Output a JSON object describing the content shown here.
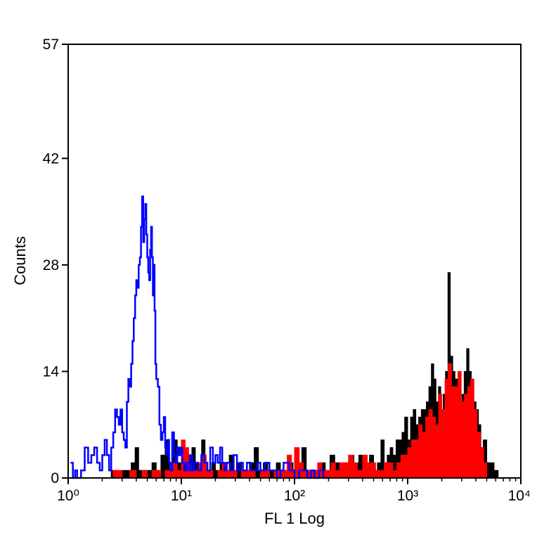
{
  "chart_data": {
    "type": "area",
    "title": "",
    "xlabel": "FL 1 Log",
    "ylabel": "Counts",
    "x_scale": "log",
    "xlim": [
      1,
      10000
    ],
    "ylim": [
      0,
      57
    ],
    "x_ticks": [
      {
        "value": 1,
        "label": "10⁰"
      },
      {
        "value": 10,
        "label": "10¹"
      },
      {
        "value": 100,
        "label": "10²"
      },
      {
        "value": 1000,
        "label": "10³"
      },
      {
        "value": 10000,
        "label": "10⁴"
      }
    ],
    "y_ticks": [
      {
        "value": 0,
        "label": "0"
      },
      {
        "value": 14,
        "label": "14"
      },
      {
        "value": 28,
        "label": "28"
      },
      {
        "value": 42,
        "label": "42"
      },
      {
        "value": 57,
        "label": "57"
      }
    ],
    "grid": false,
    "legend": "none",
    "series": [
      {
        "kind": "filled",
        "fill_color": "#000000",
        "x": [
          1.3,
          1.6,
          2.0,
          2.4,
          2.7,
          3.0,
          3.3,
          3.6,
          3.9,
          4.2,
          4.6,
          5.0,
          5.5,
          6.0,
          6.6,
          7.2,
          7.8,
          8.5,
          9.2,
          10.0,
          10.7,
          11.5,
          12.4,
          13.3,
          14.2,
          15.1,
          16.2,
          17.4,
          18.6,
          20.0,
          22.0,
          24.0,
          26.5,
          29.0,
          31.5,
          34.0,
          37.0,
          40.0,
          44.0,
          48.0,
          53.0,
          58.0,
          63.0,
          69.0,
          75.0,
          82.0,
          89.0,
          97.0,
          106.0,
          116.0,
          127.0,
          140.0,
          154.0,
          170.0,
          187.0,
          206.0,
          227.0,
          250.0,
          275.0,
          303.0,
          335.0,
          370.0,
          400.0,
          430.0,
          460.0,
          500.0,
          540.0,
          580.0,
          620.0,
          660.0,
          700.0,
          740.0,
          790.0,
          840.0,
          890.0,
          940.0,
          1000.0,
          1060.0,
          1120.0,
          1180.0,
          1250.0,
          1320.0,
          1390.0,
          1460.0,
          1540.0,
          1620.0,
          1700.0,
          1780.0,
          1870.0,
          1960.0,
          2060.0,
          2160.0,
          2270.0,
          2380.0,
          2500.0,
          2620.0,
          2750.0,
          2880.0,
          3020.0,
          3160.0,
          3320.0,
          3480.0,
          3650.0,
          3830.0,
          4020.0,
          4220.0,
          4430.0,
          4650.0,
          5000.0,
          5400.0,
          5800.0,
          6300.0
        ],
        "y": [
          0,
          0,
          0,
          1,
          0,
          1,
          1,
          2,
          4,
          1,
          1,
          1,
          2,
          1,
          3,
          5,
          1,
          5,
          2,
          2,
          1,
          3,
          4,
          2,
          1,
          5,
          1,
          1,
          2,
          1,
          2,
          1,
          3,
          1,
          2,
          1,
          1,
          2,
          4,
          1,
          2,
          1,
          1,
          2,
          1,
          1,
          2,
          1,
          2,
          4,
          1,
          1,
          1,
          2,
          1,
          3,
          2,
          1,
          2,
          3,
          2,
          3,
          2,
          1,
          3,
          1,
          2,
          5,
          2,
          3,
          4,
          3,
          5,
          5,
          6,
          8,
          5,
          8,
          9,
          7,
          8,
          9,
          9,
          10,
          12,
          15,
          13,
          10,
          12,
          9,
          11,
          14,
          27,
          16,
          14,
          13,
          12,
          10,
          11,
          14,
          17,
          14,
          11,
          10,
          9,
          7,
          4,
          5,
          2,
          2,
          1,
          0
        ]
      },
      {
        "kind": "filled",
        "fill_color": "#ff0000",
        "x": [
          2.0,
          2.5,
          3.0,
          3.5,
          4.0,
          4.5,
          5.0,
          5.5,
          6.0,
          6.6,
          7.2,
          7.8,
          8.5,
          9.2,
          10.0,
          10.8,
          11.6,
          12.5,
          13.4,
          14.4,
          15.5,
          16.6,
          17.8,
          19.0,
          21.0,
          23.0,
          25.5,
          28.0,
          31.0,
          34.0,
          37.0,
          41.0,
          45.0,
          50.0,
          55.0,
          60.0,
          66.0,
          72.0,
          79.0,
          86.0,
          94.0,
          100.0,
          110.0,
          120.0,
          130.0,
          145.0,
          160.0,
          175.0,
          190.0,
          210.0,
          230.0,
          250.0,
          275.0,
          300.0,
          330.0,
          360.0,
          400.0,
          440.0,
          480.0,
          520.0,
          570.0,
          620.0,
          680.0,
          740.0,
          800.0,
          870.0,
          940.0,
          1000.0,
          1080.0,
          1160.0,
          1250.0,
          1340.0,
          1440.0,
          1540.0,
          1650.0,
          1760.0,
          1880.0,
          2000.0,
          2140.0,
          2280.0,
          2440.0,
          2600.0,
          2780.0,
          2970.0,
          3170.0,
          3380.0,
          3600.0,
          3850.0,
          4100.0,
          4400.0,
          4700.0,
          5000.0
        ],
        "y": [
          0,
          1,
          0,
          1,
          0,
          1,
          0,
          1,
          1,
          0,
          1,
          1,
          2,
          1,
          5,
          4,
          2,
          1,
          1,
          2,
          3,
          1,
          1,
          0,
          1,
          2,
          1,
          1,
          0,
          1,
          1,
          1,
          0,
          1,
          1,
          0,
          1,
          1,
          1,
          3,
          1,
          4,
          2,
          1,
          1,
          1,
          2,
          1,
          1,
          2,
          1,
          2,
          2,
          3,
          2,
          1,
          3,
          2,
          2,
          1,
          1,
          2,
          2,
          1,
          2,
          3,
          3,
          4,
          5,
          5,
          7,
          6,
          8,
          9,
          8,
          7,
          11,
          9,
          13,
          15,
          12,
          12,
          14,
          10,
          11,
          12,
          13,
          9,
          6,
          4,
          2,
          0
        ]
      },
      {
        "kind": "line",
        "stroke_color": "#0000ff",
        "x": [
          1.05,
          1.1,
          1.15,
          1.2,
          1.3,
          1.4,
          1.5,
          1.6,
          1.7,
          1.8,
          1.9,
          2.0,
          2.1,
          2.2,
          2.3,
          2.4,
          2.5,
          2.6,
          2.7,
          2.8,
          2.9,
          3.0,
          3.1,
          3.2,
          3.3,
          3.4,
          3.5,
          3.6,
          3.7,
          3.8,
          3.9,
          4.0,
          4.1,
          4.2,
          4.3,
          4.4,
          4.5,
          4.6,
          4.7,
          4.8,
          4.9,
          5.0,
          5.1,
          5.2,
          5.3,
          5.4,
          5.5,
          5.6,
          5.7,
          5.8,
          5.9,
          6.0,
          6.2,
          6.4,
          6.6,
          6.8,
          7.0,
          7.2,
          7.4,
          7.6,
          7.8,
          8.0,
          8.3,
          8.6,
          8.9,
          9.2,
          9.5,
          9.8,
          10.2,
          10.6,
          11.0,
          11.5,
          12.0,
          12.5,
          13.0,
          14.0,
          15.0,
          16.0,
          17.0,
          18.0,
          19.0,
          20.0,
          21.0,
          22.0,
          23.0,
          24.0,
          25.0,
          27.0,
          29.0,
          31.0,
          33.0,
          35.0,
          38.0,
          41.0,
          44.0,
          47.0,
          50.0,
          55.0,
          60.0,
          65.0,
          70.0,
          75.0,
          80.0,
          90.0,
          100.0,
          110.0,
          120.0,
          130.0,
          140.0,
          150.0,
          165.0,
          180.0,
          200.0
        ],
        "y": [
          2,
          0,
          1,
          0,
          1,
          4,
          2,
          3,
          4,
          2,
          1,
          3,
          5,
          3,
          1,
          4,
          6,
          9,
          8,
          7,
          9,
          6,
          5,
          4,
          10,
          13,
          12,
          15,
          18,
          21,
          24,
          26,
          25,
          28,
          29,
          33,
          37,
          31,
          34,
          36,
          32,
          29,
          27,
          26,
          30,
          33,
          29,
          24,
          28,
          22,
          15,
          13,
          12,
          7,
          5,
          6,
          8,
          4,
          3,
          5,
          2,
          1,
          6,
          3,
          2,
          4,
          3,
          4,
          2,
          1,
          2,
          1,
          3,
          1,
          2,
          1,
          3,
          2,
          1,
          4,
          2,
          3,
          2,
          4,
          2,
          1,
          2,
          1,
          3,
          1,
          2,
          1,
          2,
          1,
          1,
          2,
          1,
          2,
          1,
          1,
          0,
          1,
          2,
          1,
          0,
          1,
          1,
          0,
          1,
          0,
          1,
          0,
          0
        ]
      }
    ]
  }
}
